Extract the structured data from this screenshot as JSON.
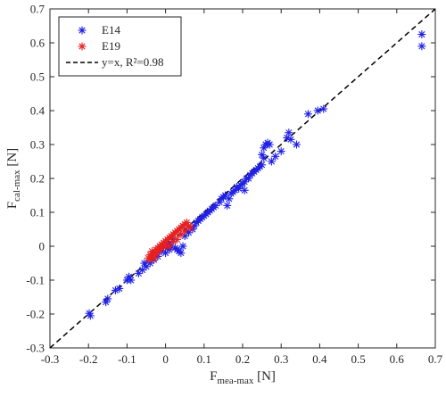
{
  "chart_data": {
    "type": "scatter",
    "title": "",
    "xlabel_main": "F",
    "xlabel_sub": "mea-max",
    "xlabel_unit": " [N]",
    "ylabel_main": "F",
    "ylabel_sub": "cal-max",
    "ylabel_unit": " [N]",
    "xlim": [
      -0.3,
      0.7
    ],
    "ylim": [
      -0.3,
      0.7
    ],
    "x_ticks": [
      -0.3,
      -0.2,
      -0.1,
      0,
      0.1,
      0.2,
      0.3,
      0.4,
      0.5,
      0.6,
      0.7
    ],
    "x_tick_labels": [
      "-0.3",
      "-0.2",
      "-0.1",
      "0",
      "0.1",
      "0.2",
      "0.3",
      "0.4",
      "0.5",
      "0.6",
      "0.7"
    ],
    "y_ticks": [
      -0.3,
      -0.2,
      -0.1,
      0,
      0.1,
      0.2,
      0.3,
      0.4,
      0.5,
      0.6,
      0.7
    ],
    "y_tick_labels": [
      "-0.3",
      "-0.2",
      "-0.1",
      "0",
      "0.1",
      "0.2",
      "0.3",
      "0.4",
      "0.5",
      "0.6",
      "0.7"
    ],
    "grid": false,
    "legend_position": "top-left",
    "colors": {
      "E14": "#1f1fe6",
      "E19": "#e62020",
      "fit": "#000000",
      "axis": "#262626"
    },
    "fit_line": {
      "name": "y=x, R²=0.98",
      "x": [
        -0.3,
        0.7
      ],
      "y": [
        -0.3,
        0.7
      ]
    },
    "series": [
      {
        "name": "E14",
        "marker": "asterisk",
        "points": [
          [
            -0.195,
            -0.205
          ],
          [
            -0.198,
            -0.198
          ],
          [
            -0.155,
            -0.165
          ],
          [
            -0.15,
            -0.155
          ],
          [
            -0.13,
            -0.13
          ],
          [
            -0.12,
            -0.125
          ],
          [
            -0.1,
            -0.1
          ],
          [
            -0.095,
            -0.09
          ],
          [
            -0.09,
            -0.1
          ],
          [
            -0.07,
            -0.08
          ],
          [
            -0.06,
            -0.07
          ],
          [
            -0.055,
            -0.05
          ],
          [
            -0.05,
            -0.06
          ],
          [
            -0.04,
            -0.05
          ],
          [
            -0.035,
            -0.03
          ],
          [
            -0.03,
            -0.04
          ],
          [
            -0.025,
            -0.02
          ],
          [
            -0.02,
            -0.03
          ],
          [
            -0.015,
            -0.01
          ],
          [
            -0.01,
            -0.015
          ],
          [
            -0.005,
            0.0
          ],
          [
            0.0,
            0.005
          ],
          [
            0.005,
            -0.005
          ],
          [
            0.01,
            0.01
          ],
          [
            0.015,
            0.0
          ],
          [
            0.02,
            0.02
          ],
          [
            0.0,
            -0.02
          ],
          [
            0.01,
            -0.01
          ],
          [
            0.025,
            -0.005
          ],
          [
            0.03,
            -0.01
          ],
          [
            0.035,
            -0.015
          ],
          [
            0.04,
            -0.02
          ],
          [
            0.045,
            0.0
          ],
          [
            0.05,
            0.03
          ],
          [
            0.055,
            0.045
          ],
          [
            0.06,
            0.04
          ],
          [
            0.065,
            0.055
          ],
          [
            0.07,
            0.05
          ],
          [
            0.075,
            0.06
          ],
          [
            0.08,
            0.07
          ],
          [
            0.085,
            0.075
          ],
          [
            0.09,
            0.08
          ],
          [
            0.095,
            0.085
          ],
          [
            0.1,
            0.09
          ],
          [
            0.105,
            0.095
          ],
          [
            0.11,
            0.1
          ],
          [
            0.115,
            0.105
          ],
          [
            0.12,
            0.11
          ],
          [
            0.125,
            0.115
          ],
          [
            0.13,
            0.12
          ],
          [
            0.14,
            0.13
          ],
          [
            0.145,
            0.14
          ],
          [
            0.15,
            0.145
          ],
          [
            0.155,
            0.15
          ],
          [
            0.16,
            0.12
          ],
          [
            0.165,
            0.14
          ],
          [
            0.17,
            0.155
          ],
          [
            0.175,
            0.16
          ],
          [
            0.18,
            0.165
          ],
          [
            0.185,
            0.175
          ],
          [
            0.19,
            0.17
          ],
          [
            0.195,
            0.18
          ],
          [
            0.2,
            0.185
          ],
          [
            0.205,
            0.19
          ],
          [
            0.205,
            0.165
          ],
          [
            0.21,
            0.2
          ],
          [
            0.215,
            0.2
          ],
          [
            0.22,
            0.21
          ],
          [
            0.225,
            0.215
          ],
          [
            0.23,
            0.22
          ],
          [
            0.235,
            0.225
          ],
          [
            0.24,
            0.23
          ],
          [
            0.245,
            0.235
          ],
          [
            0.25,
            0.24
          ],
          [
            0.25,
            0.27
          ],
          [
            0.255,
            0.26
          ],
          [
            0.255,
            0.29
          ],
          [
            0.26,
            0.3
          ],
          [
            0.265,
            0.305
          ],
          [
            0.27,
            0.3
          ],
          [
            0.275,
            0.25
          ],
          [
            0.285,
            0.265
          ],
          [
            0.3,
            0.28
          ],
          [
            0.315,
            0.32
          ],
          [
            0.32,
            0.335
          ],
          [
            0.325,
            0.315
          ],
          [
            0.34,
            0.3
          ],
          [
            0.37,
            0.39
          ],
          [
            0.395,
            0.4
          ],
          [
            0.41,
            0.405
          ],
          [
            0.665,
            0.625
          ],
          [
            0.665,
            0.59
          ]
        ]
      },
      {
        "name": "E19",
        "marker": "asterisk",
        "points": [
          [
            -0.045,
            -0.035
          ],
          [
            -0.04,
            -0.04
          ],
          [
            -0.04,
            -0.025
          ],
          [
            -0.035,
            -0.03
          ],
          [
            -0.035,
            -0.015
          ],
          [
            -0.03,
            -0.02
          ],
          [
            -0.03,
            -0.035
          ],
          [
            -0.025,
            -0.01
          ],
          [
            -0.025,
            -0.025
          ],
          [
            -0.02,
            -0.005
          ],
          [
            -0.02,
            -0.015
          ],
          [
            -0.015,
            0.0
          ],
          [
            -0.015,
            -0.01
          ],
          [
            -0.01,
            0.005
          ],
          [
            -0.01,
            -0.005
          ],
          [
            -0.005,
            0.01
          ],
          [
            0.0,
            0.015
          ],
          [
            0.0,
            0.0
          ],
          [
            0.005,
            0.02
          ],
          [
            0.01,
            0.025
          ],
          [
            0.015,
            0.03
          ],
          [
            0.02,
            0.035
          ],
          [
            0.025,
            0.04
          ],
          [
            0.03,
            0.045
          ],
          [
            0.035,
            0.05
          ],
          [
            0.04,
            0.055
          ],
          [
            0.045,
            0.06
          ],
          [
            0.05,
            0.065
          ],
          [
            0.055,
            0.07
          ],
          [
            0.06,
            0.06
          ],
          [
            0.065,
            0.055
          ],
          [
            0.03,
            0.02
          ],
          [
            0.04,
            0.035
          ],
          [
            0.05,
            0.045
          ],
          [
            0.02,
            0.015
          ],
          [
            0.01,
            0.0
          ]
        ]
      }
    ]
  }
}
